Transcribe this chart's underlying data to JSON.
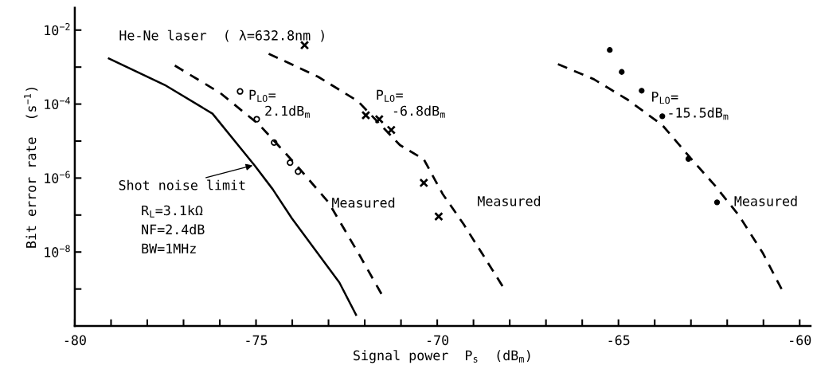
{
  "chart_data": {
    "type": "line",
    "xlabel": "Signal power  P$_{s}$  (dB$_{m}$)",
    "ylabel": "Bit error rate  (s$^{−1}$)",
    "log": "y",
    "xlim": [
      -80,
      -59.7
    ],
    "ylim": [
      1e-10,
      0.04
    ],
    "xticks": [
      -80,
      {
        "value": -79,
        "label": null
      },
      {
        "value": -78,
        "label": null
      },
      {
        "value": -77,
        "label": null
      },
      {
        "value": -76,
        "label": null
      },
      -75,
      {
        "value": -74,
        "label": null
      },
      {
        "value": -73,
        "label": null
      },
      {
        "value": -72,
        "label": null
      },
      {
        "value": -71,
        "label": null
      },
      -70,
      {
        "value": -69,
        "label": null
      },
      {
        "value": -68,
        "label": null
      },
      {
        "value": -67,
        "label": null
      },
      {
        "value": -66,
        "label": null
      },
      -65,
      {
        "value": -64,
        "label": null
      },
      {
        "value": -63,
        "label": null
      },
      {
        "value": -62,
        "label": null
      },
      {
        "value": -61,
        "label": null
      },
      -60
    ],
    "yticks": [
      {
        "value": 0.01,
        "label": "10$^{−2}$"
      },
      {
        "value": 0.001,
        "label": null
      },
      {
        "value": 0.0001,
        "label": "10$^{−4}$"
      },
      {
        "value": 1e-05,
        "label": null
      },
      {
        "value": 1e-06,
        "label": "10$^{−6}$"
      },
      {
        "value": 1e-07,
        "label": null
      },
      {
        "value": 1e-08,
        "label": "10$^{−8}$"
      },
      {
        "value": 1e-09,
        "label": null
      }
    ],
    "grid": false,
    "series": [
      {
        "line_style": "solid",
        "color": "#000000",
        "x": [
          -79.06,
          -77.52,
          -76.2,
          -75.04,
          -74.54,
          -74.01,
          -72.7,
          -72.24
        ],
        "values": [
          0.0017,
          0.00033,
          5.5e-05,
          2.2e-06,
          5e-07,
          8.1e-08,
          1.5e-09,
          2e-10
        ]
      },
      {
        "line_style": "dashed",
        "color": "#000000",
        "x": [
          -77.24,
          -75.99,
          -74.9,
          -73.88,
          -73.0,
          -72.13,
          -71.54
        ],
        "values": [
          0.0011,
          0.0002,
          2.7e-05,
          2.2e-06,
          2.2e-07,
          7.8e-09,
          7.4e-10
        ]
      },
      {
        "type": "scatter",
        "marker": "circle",
        "color": "#000000",
        "x": [
          -75.44,
          -74.98,
          -74.5,
          -74.06,
          -73.84
        ],
        "values": [
          0.00022,
          3.9e-05,
          9.1e-06,
          2.6e-06,
          1.5e-06
        ]
      },
      {
        "line_style": "dashed",
        "color": "#000000",
        "x": [
          -74.65,
          -73.29,
          -72.19,
          -71.03,
          -70.37,
          -69.85,
          -69.28,
          -68.68,
          -68.2
        ],
        "values": [
          0.0023,
          0.00055,
          0.00012,
          7.8e-06,
          3.2e-06,
          3.7e-07,
          5.8e-08,
          6.8e-09,
          1.2e-09
        ]
      },
      {
        "type": "scatter",
        "marker": "cross",
        "color": "#000000",
        "x": [
          -73.66,
          -71.97,
          -71.6,
          -71.27,
          -70.37,
          -69.96
        ],
        "values": [
          0.0039,
          5e-05,
          3.9e-05,
          2e-05,
          7.4e-07,
          9.1e-08
        ]
      },
      {
        "line_style": "dashed",
        "color": "#000000",
        "x": [
          -66.67,
          -65.68,
          -64.74,
          -63.79,
          -62.98,
          -62.32,
          -61.67,
          -61.01,
          -60.5
        ],
        "values": [
          0.0012,
          0.00047,
          0.00013,
          2.7e-05,
          3.2e-06,
          6e-07,
          9.5e-08,
          9.1e-09,
          1e-09
        ]
      },
      {
        "type": "scatter",
        "marker": "dot",
        "color": "#000000",
        "x": [
          -65.24,
          -64.91,
          -64.36,
          -63.79,
          -63.07,
          -62.28
        ],
        "values": [
          0.0029,
          0.00074,
          0.00023,
          4.7e-05,
          3.3e-06,
          2.2e-07
        ]
      }
    ],
    "annotations": [
      "He-Ne laser  ( λ=632.8nm )",
      "R$_{L}$=3.1kΩ\nNF=2.4dB\nBW=1MHz",
      {
        "text": "Shot noise limit",
        "x": -75.09,
        "y": 2.2e-06
      },
      "P$_{LO}$=\n  2.1dB$_{m}$",
      "P$_{LO}$=\n  -6.8dB$_{m}$",
      "P$_{LO}$=\n  -15.5dB$_{m}$",
      "Measured",
      "Measured",
      "Measured"
    ]
  }
}
